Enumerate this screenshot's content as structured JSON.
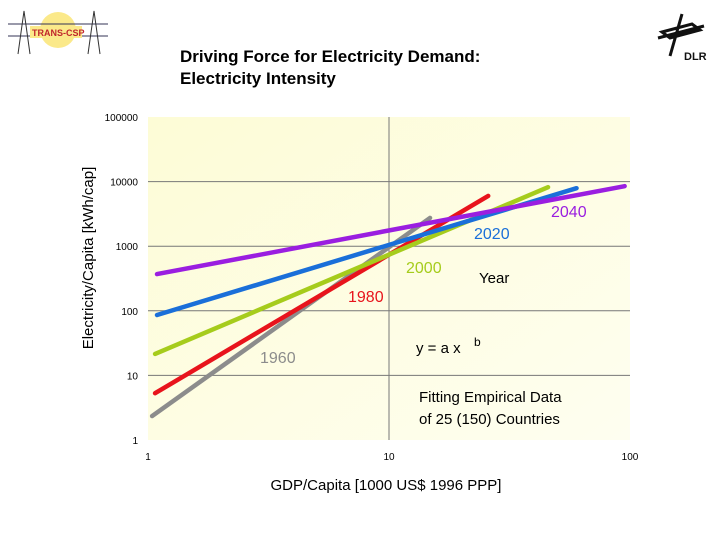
{
  "header": {
    "title_line1": "Driving Force for Electricity Demand:",
    "title_line2": "Electricity Intensity",
    "logo_left": "TRANS-CSP",
    "logo_right": "DLR"
  },
  "chart_data": {
    "type": "line",
    "xlabel": "GDP/Capita [1000 US$ 1996 PPP]",
    "ylabel": "Electricity/Capita [kWh/cap]",
    "xscale": "log",
    "yscale": "log",
    "xlim": [
      1,
      100
    ],
    "ylim": [
      1,
      100000
    ],
    "xticks": [
      "1",
      "10",
      "100"
    ],
    "yticks": [
      "1",
      "10",
      "100",
      "1000",
      "10000",
      "100000"
    ],
    "grid": true,
    "legend_title": "Year",
    "series": [
      {
        "name": "1960",
        "color": "#8c8c8c",
        "x": [
          1.04,
          14.8
        ],
        "y": [
          2.35,
          2740
        ]
      },
      {
        "name": "1980",
        "color": "#e8141c",
        "x": [
          1.07,
          25.8
        ],
        "y": [
          5.3,
          6000
        ]
      },
      {
        "name": "2000",
        "color": "#a6cc1c",
        "x": [
          1.07,
          45.7
        ],
        "y": [
          21.5,
          8200
        ]
      },
      {
        "name": "2020",
        "color": "#1a6fd9",
        "x": [
          1.09,
          60
        ],
        "y": [
          86,
          7900
        ]
      },
      {
        "name": "2040",
        "color": "#9a1ee0",
        "x": [
          1.09,
          95
        ],
        "y": [
          370,
          8500
        ]
      }
    ],
    "annotations": [
      "y = a x",
      "b",
      "Fitting Empirical Data",
      "of 25 (150) Countries"
    ]
  }
}
